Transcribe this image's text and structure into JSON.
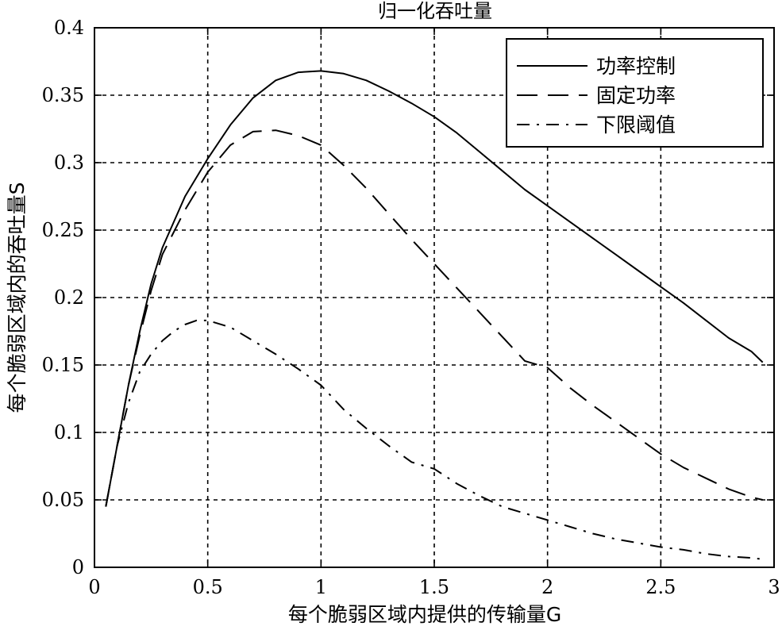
{
  "chart_data": {
    "type": "line",
    "title": "归一化吞吐量",
    "xlabel": "每个脆弱区域内提供的传输量G",
    "ylabel": "每个脆弱区域内的吞吐量S",
    "xlim": [
      0,
      3
    ],
    "ylim": [
      0,
      0.4
    ],
    "x_ticks": [
      0,
      0.5,
      1,
      1.5,
      2,
      2.5,
      3
    ],
    "x_tick_labels": [
      "0",
      "0.5",
      "1",
      "1.5",
      "2",
      "2.5",
      "3"
    ],
    "y_ticks": [
      0,
      0.05,
      0.1,
      0.15,
      0.2,
      0.25,
      0.3,
      0.35,
      0.4
    ],
    "y_tick_labels": [
      "0",
      "0.05",
      "0.1",
      "0.15",
      "0.2",
      "0.25",
      "0.3",
      "0.35",
      "0.4"
    ],
    "grid": true,
    "legend_position": "top-right",
    "series": [
      {
        "name": "功率控制",
        "style": "solid",
        "x": [
          0.05,
          0.1,
          0.15,
          0.2,
          0.25,
          0.3,
          0.4,
          0.5,
          0.6,
          0.7,
          0.8,
          0.9,
          1.0,
          1.1,
          1.2,
          1.3,
          1.4,
          1.5,
          1.6,
          1.7,
          1.8,
          1.9,
          2.0,
          2.1,
          2.2,
          2.3,
          2.4,
          2.5,
          2.6,
          2.7,
          2.8,
          2.9,
          2.95
        ],
        "y": [
          0.045,
          0.09,
          0.135,
          0.175,
          0.21,
          0.237,
          0.275,
          0.303,
          0.328,
          0.348,
          0.361,
          0.367,
          0.368,
          0.366,
          0.361,
          0.353,
          0.344,
          0.334,
          0.322,
          0.308,
          0.294,
          0.28,
          0.268,
          0.256,
          0.244,
          0.232,
          0.22,
          0.208,
          0.196,
          0.183,
          0.17,
          0.16,
          0.152
        ]
      },
      {
        "name": "固定功率",
        "style": "dashed",
        "x": [
          0.05,
          0.1,
          0.15,
          0.2,
          0.25,
          0.3,
          0.4,
          0.5,
          0.6,
          0.7,
          0.8,
          0.9,
          1.0,
          1.1,
          1.2,
          1.3,
          1.4,
          1.5,
          1.6,
          1.7,
          1.8,
          1.9,
          2.0,
          2.1,
          2.2,
          2.3,
          2.4,
          2.5,
          2.6,
          2.7,
          2.8,
          2.9,
          2.95
        ],
        "y": [
          0.045,
          0.09,
          0.135,
          0.172,
          0.205,
          0.232,
          0.265,
          0.293,
          0.313,
          0.323,
          0.324,
          0.32,
          0.313,
          0.298,
          0.281,
          0.262,
          0.243,
          0.225,
          0.207,
          0.189,
          0.171,
          0.153,
          0.148,
          0.133,
          0.12,
          0.108,
          0.096,
          0.084,
          0.074,
          0.066,
          0.058,
          0.052,
          0.05
        ]
      },
      {
        "name": "下限阈值",
        "style": "dash-dot",
        "x": [
          0.05,
          0.1,
          0.15,
          0.2,
          0.25,
          0.3,
          0.35,
          0.4,
          0.45,
          0.5,
          0.6,
          0.7,
          0.8,
          0.9,
          1.0,
          1.1,
          1.2,
          1.3,
          1.4,
          1.5,
          1.6,
          1.7,
          1.8,
          1.9,
          2.0,
          2.1,
          2.2,
          2.3,
          2.4,
          2.5,
          2.6,
          2.7,
          2.8,
          2.9,
          2.95
        ],
        "y": [
          0.045,
          0.09,
          0.122,
          0.145,
          0.158,
          0.168,
          0.175,
          0.18,
          0.183,
          0.183,
          0.178,
          0.168,
          0.158,
          0.147,
          0.135,
          0.117,
          0.103,
          0.09,
          0.078,
          0.073,
          0.062,
          0.053,
          0.045,
          0.04,
          0.035,
          0.03,
          0.025,
          0.021,
          0.018,
          0.015,
          0.013,
          0.01,
          0.008,
          0.007,
          0.006
        ]
      }
    ]
  },
  "colors": {
    "line": "#000000",
    "grid": "#000000",
    "background": "#ffffff"
  }
}
